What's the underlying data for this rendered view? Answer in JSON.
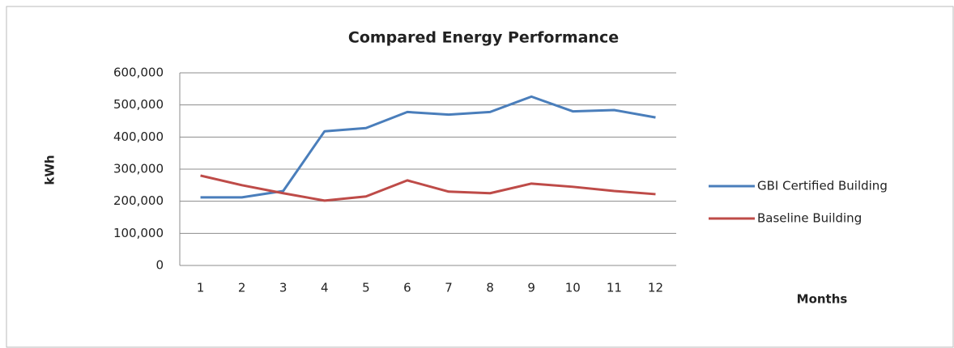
{
  "chart_data": {
    "type": "line",
    "title": "Compared Energy Performance",
    "x_label": "Months",
    "y_label": "kWh",
    "categories": [
      1,
      2,
      3,
      4,
      5,
      6,
      7,
      8,
      9,
      10,
      11,
      12
    ],
    "series": [
      {
        "name": "GBI Certified Building",
        "color": "#4a7ebb",
        "values": [
          212000,
          212000,
          232000,
          418000,
          428000,
          478000,
          470000,
          478000,
          526000,
          480000,
          484000,
          461000
        ]
      },
      {
        "name": "Baseline Building",
        "color": "#be4b48",
        "values": [
          280000,
          250000,
          225000,
          202000,
          215000,
          265000,
          230000,
          225000,
          255000,
          245000,
          232000,
          222000
        ]
      }
    ],
    "ylim": [
      0,
      600000
    ],
    "yticks": [
      0,
      {
        "value": 100000,
        "label": "100,000"
      },
      {
        "value": 200000,
        "label": "200,000"
      },
      {
        "value": 300000,
        "label": "300,000"
      },
      {
        "value": 400000,
        "label": "400,000"
      },
      {
        "value": 500000,
        "label": "500,000"
      },
      {
        "value": 600000,
        "label": "600,000"
      }
    ],
    "grid": true,
    "legend": "right"
  }
}
